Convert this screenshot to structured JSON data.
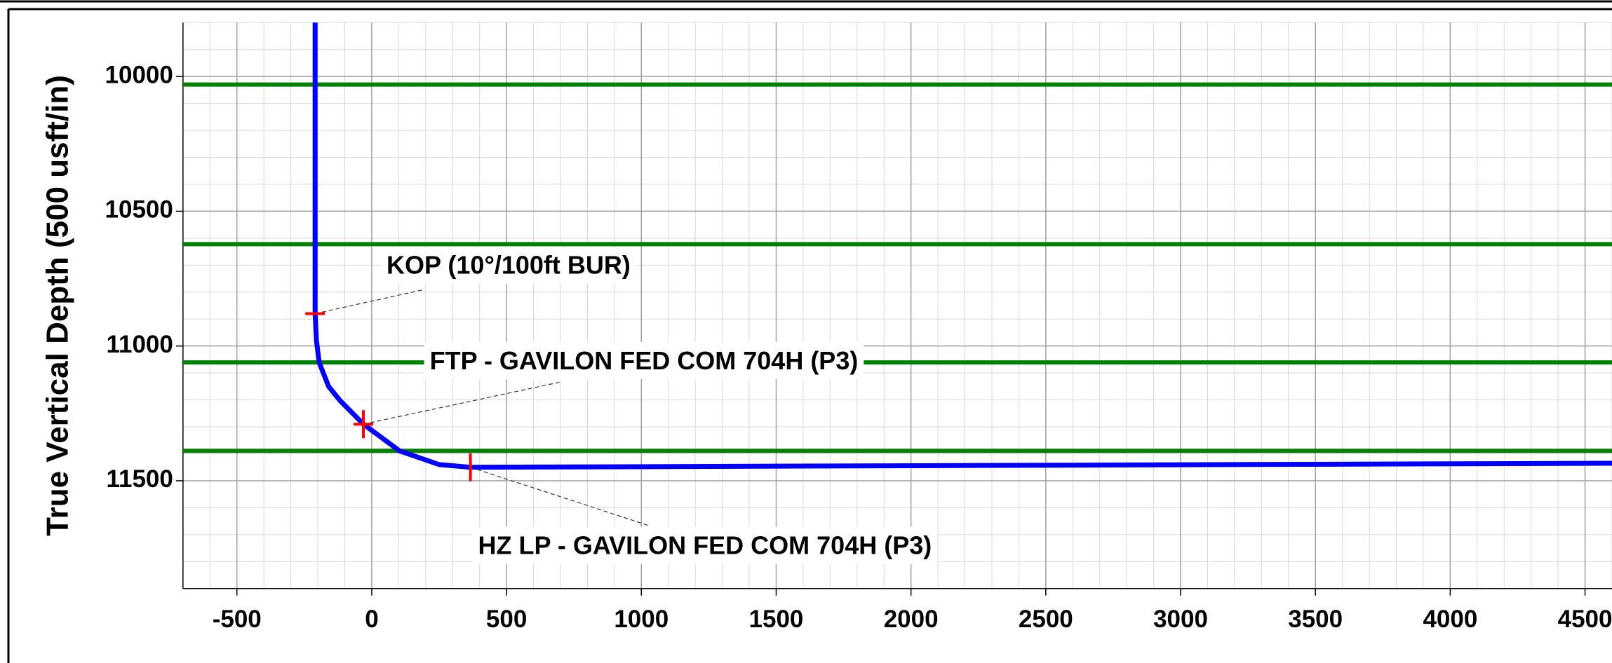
{
  "chart_data": {
    "type": "line",
    "y_label": "True Vertical Depth (500 usft/in)",
    "xlim": [
      -700,
      4600
    ],
    "ylim": [
      9800,
      11900
    ],
    "y_inverted": true,
    "xticks": [
      -500,
      0,
      500,
      1000,
      1500,
      2000,
      2500,
      3000,
      3500,
      4000,
      4500
    ],
    "yticks": [
      10000,
      10500,
      11000,
      11500
    ],
    "grid": true,
    "minor_step": 100,
    "formation_tops": {
      "color": "#008000",
      "values": [
        10030,
        10622,
        11061,
        11389
      ]
    },
    "series": [
      {
        "color": "#0000ff",
        "x": [
          -210,
          -210,
          -205,
          -195,
          -160,
          -118,
          -31,
          103,
          250,
          366,
          4600
        ],
        "y": [
          9800,
          10880,
          10980,
          11061,
          11150,
          11202,
          11290,
          11389,
          11440,
          11450,
          11435
        ]
      }
    ],
    "annotations": [
      {
        "label": "KOP (10°/100ft BUR)",
        "x": -210,
        "y": 10880
      },
      {
        "label": "FTP - GAVILON FED COM 704H (P3)",
        "x": -31,
        "y": 11290
      },
      {
        "label": "HZ LP - GAVILON FED COM 704H (P3)",
        "x": 366,
        "y": 11450
      }
    ],
    "marker_color": "#ff0000"
  }
}
